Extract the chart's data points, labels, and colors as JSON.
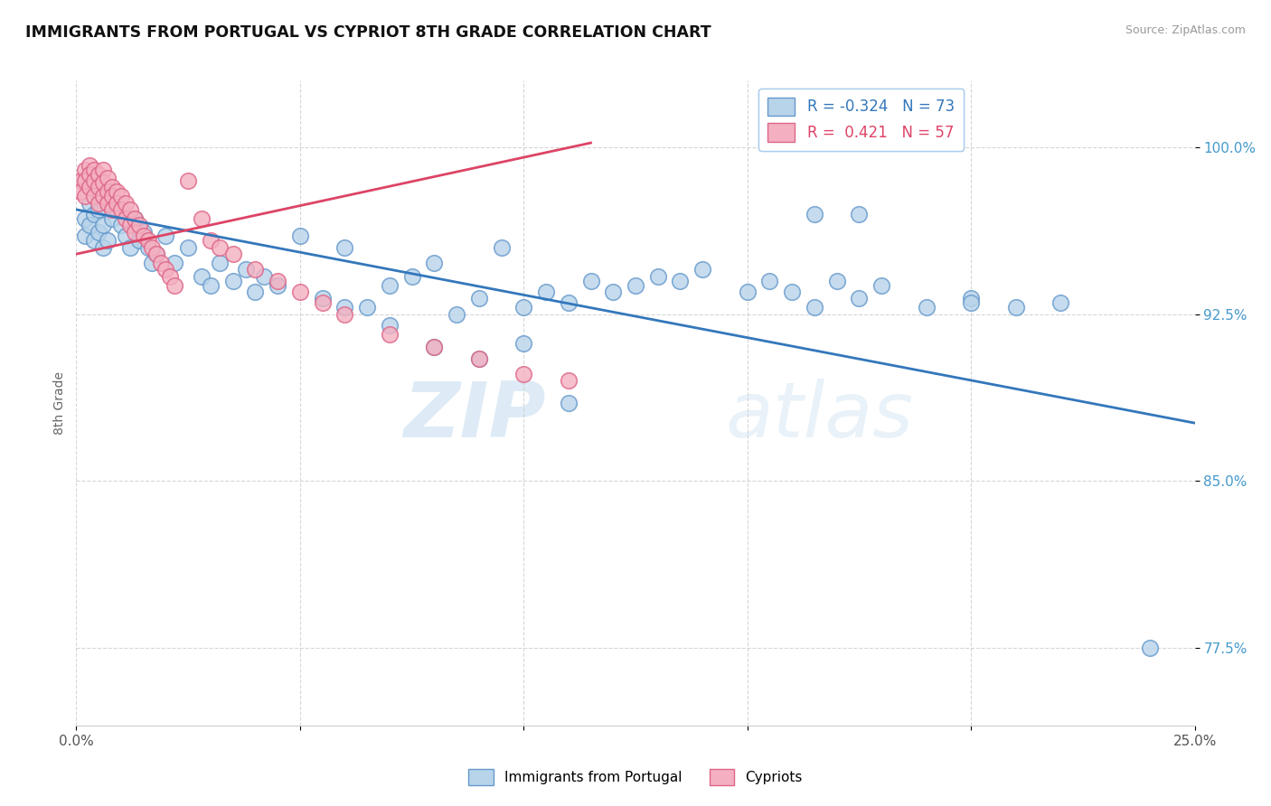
{
  "title": "IMMIGRANTS FROM PORTUGAL VS CYPRIOT 8TH GRADE CORRELATION CHART",
  "source_text": "Source: ZipAtlas.com",
  "ylabel": "8th Grade",
  "xlim": [
    0.0,
    0.25
  ],
  "ylim": [
    0.74,
    1.03
  ],
  "yticks": [
    0.775,
    0.85,
    0.925,
    1.0
  ],
  "ytick_labels": [
    "77.5%",
    "85.0%",
    "92.5%",
    "100.0%"
  ],
  "blue_R": -0.324,
  "blue_N": 73,
  "pink_R": 0.421,
  "pink_N": 57,
  "blue_color": "#b8d4ea",
  "pink_color": "#f4b0c0",
  "blue_edge_color": "#6699cc",
  "pink_edge_color": "#dd6688",
  "blue_line_color": "#3377bb",
  "pink_line_color": "#dd4466",
  "legend_label_blue": "Immigrants from Portugal",
  "legend_label_pink": "Cypriots",
  "watermark_zip": "ZIP",
  "watermark_atlas": "atlas",
  "blue_trend_x": [
    0.0,
    0.25
  ],
  "blue_trend_y": [
    0.972,
    0.876
  ],
  "pink_trend_x": [
    0.0,
    0.115
  ],
  "pink_trend_y": [
    0.952,
    1.002
  ],
  "blue_x": [
    0.002,
    0.002,
    0.003,
    0.003,
    0.004,
    0.004,
    0.005,
    0.005,
    0.006,
    0.006,
    0.007,
    0.008,
    0.009,
    0.01,
    0.011,
    0.012,
    0.013,
    0.014,
    0.015,
    0.016,
    0.017,
    0.018,
    0.02,
    0.022,
    0.025,
    0.028,
    0.03,
    0.032,
    0.035,
    0.038,
    0.04,
    0.042,
    0.045,
    0.05,
    0.055,
    0.06,
    0.065,
    0.07,
    0.075,
    0.08,
    0.085,
    0.09,
    0.095,
    0.1,
    0.105,
    0.11,
    0.115,
    0.12,
    0.125,
    0.13,
    0.135,
    0.14,
    0.15,
    0.155,
    0.16,
    0.165,
    0.17,
    0.175,
    0.18,
    0.19,
    0.2,
    0.21,
    0.22,
    0.165,
    0.175,
    0.06,
    0.07,
    0.08,
    0.09,
    0.1,
    0.11,
    0.2,
    0.24
  ],
  "blue_y": [
    0.968,
    0.96,
    0.975,
    0.965,
    0.97,
    0.958,
    0.972,
    0.962,
    0.965,
    0.955,
    0.958,
    0.968,
    0.972,
    0.965,
    0.96,
    0.955,
    0.968,
    0.958,
    0.962,
    0.955,
    0.948,
    0.952,
    0.96,
    0.948,
    0.955,
    0.942,
    0.938,
    0.948,
    0.94,
    0.945,
    0.935,
    0.942,
    0.938,
    0.96,
    0.932,
    0.955,
    0.928,
    0.938,
    0.942,
    0.948,
    0.925,
    0.932,
    0.955,
    0.928,
    0.935,
    0.93,
    0.94,
    0.935,
    0.938,
    0.942,
    0.94,
    0.945,
    0.935,
    0.94,
    0.935,
    0.928,
    0.94,
    0.932,
    0.938,
    0.928,
    0.932,
    0.928,
    0.93,
    0.97,
    0.97,
    0.928,
    0.92,
    0.91,
    0.905,
    0.912,
    0.885,
    0.93,
    0.775
  ],
  "pink_x": [
    0.001,
    0.001,
    0.002,
    0.002,
    0.002,
    0.003,
    0.003,
    0.003,
    0.004,
    0.004,
    0.004,
    0.005,
    0.005,
    0.005,
    0.006,
    0.006,
    0.006,
    0.007,
    0.007,
    0.007,
    0.008,
    0.008,
    0.008,
    0.009,
    0.009,
    0.01,
    0.01,
    0.011,
    0.011,
    0.012,
    0.012,
    0.013,
    0.013,
    0.014,
    0.015,
    0.016,
    0.017,
    0.018,
    0.019,
    0.02,
    0.021,
    0.022,
    0.025,
    0.028,
    0.03,
    0.032,
    0.035,
    0.04,
    0.045,
    0.05,
    0.055,
    0.06,
    0.07,
    0.08,
    0.09,
    0.1,
    0.11
  ],
  "pink_y": [
    0.985,
    0.98,
    0.99,
    0.985,
    0.978,
    0.992,
    0.988,
    0.982,
    0.99,
    0.985,
    0.978,
    0.988,
    0.982,
    0.975,
    0.99,
    0.984,
    0.978,
    0.986,
    0.98,
    0.975,
    0.982,
    0.978,
    0.972,
    0.98,
    0.975,
    0.978,
    0.972,
    0.975,
    0.968,
    0.972,
    0.965,
    0.968,
    0.962,
    0.965,
    0.96,
    0.958,
    0.955,
    0.952,
    0.948,
    0.945,
    0.942,
    0.938,
    0.985,
    0.968,
    0.958,
    0.955,
    0.952,
    0.945,
    0.94,
    0.935,
    0.93,
    0.925,
    0.916,
    0.91,
    0.905,
    0.898,
    0.895
  ]
}
